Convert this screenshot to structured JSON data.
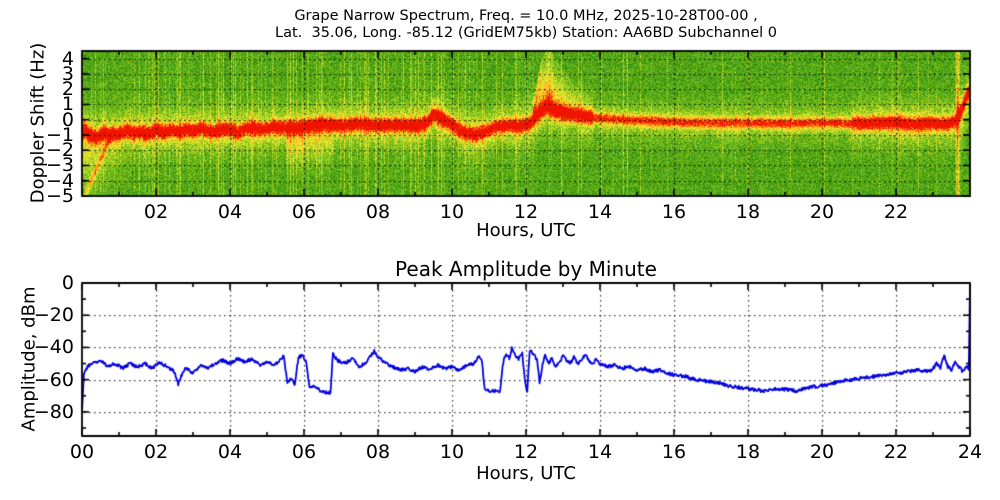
{
  "figure": {
    "background": "#ffffff"
  },
  "top_chart": {
    "title_line1": "Grape Narrow Spectrum, Freq. = 10.0 MHz, 2025-10-28T00-00 ,",
    "title_line2": "Lat.  35.06, Long. -85.12 (GridEM75kb) Station: AA6BD Subchannel 0",
    "xlabel": "Hours, UTC",
    "ylabel": "Doppler Shift (Hz)"
  },
  "bottom_chart": {
    "title": "Peak Amplitude by Minute",
    "xlabel": "Hours, UTC",
    "ylabel": "Amplitude, dBm"
  },
  "chart_data": [
    {
      "type": "heatmap",
      "title": "Grape Narrow Spectrum, Freq. = 10.0 MHz, 2025-10-28T00-00 , Lat. 35.06, Long. -85.12 (GridEM75kb) Station: AA6BD Subchannel 0",
      "xlabel": "Hours, UTC",
      "ylabel": "Doppler Shift (Hz)",
      "xlim": [
        0,
        24
      ],
      "ylim": [
        -5,
        4.5
      ],
      "grid": "dotted",
      "x_tick_values": [
        2,
        4,
        6,
        8,
        10,
        12,
        14,
        16,
        18,
        20,
        22
      ],
      "x_tick_labels": [
        "02",
        "04",
        "06",
        "08",
        "10",
        "12",
        "14",
        "16",
        "18",
        "20",
        "22"
      ],
      "y_tick_values": [
        4,
        3,
        2,
        1,
        0,
        -1,
        -2,
        -3,
        -4,
        -5
      ],
      "y_tick_labels": [
        "4",
        "3",
        "2",
        "1",
        "0",
        "−1",
        "−2",
        "−3",
        "−4",
        "−5"
      ],
      "colormap": [
        "#1e760e",
        "#3a9614",
        "#69b61a",
        "#a0d022",
        "#e1e830",
        "#ffe132",
        "#ffa019",
        "#ff5a0a",
        "#f01400"
      ],
      "doppler_trace_hz": [
        [
          0.0,
          -0.6
        ],
        [
          0.2,
          -1.0
        ],
        [
          0.4,
          -1.15
        ],
        [
          0.6,
          -0.85
        ],
        [
          0.8,
          -1.0
        ],
        [
          1.0,
          -0.95
        ],
        [
          1.2,
          -0.7
        ],
        [
          1.4,
          -0.9
        ],
        [
          1.6,
          -0.8
        ],
        [
          1.8,
          -0.95
        ],
        [
          2.0,
          -0.65
        ],
        [
          2.2,
          -0.85
        ],
        [
          2.4,
          -0.7
        ],
        [
          2.6,
          -0.8
        ],
        [
          2.8,
          -0.65
        ],
        [
          3.0,
          -0.75
        ],
        [
          3.2,
          -0.55
        ],
        [
          3.4,
          -0.75
        ],
        [
          3.6,
          -0.8
        ],
        [
          3.8,
          -0.6
        ],
        [
          4.0,
          -0.65
        ],
        [
          4.2,
          -0.85
        ],
        [
          4.4,
          -0.6
        ],
        [
          4.6,
          -0.5
        ],
        [
          4.8,
          -0.65
        ],
        [
          5.0,
          -0.6
        ],
        [
          5.2,
          -0.45
        ],
        [
          5.4,
          -0.55
        ],
        [
          5.6,
          -0.5
        ],
        [
          5.8,
          -0.55
        ],
        [
          6.0,
          -0.45
        ],
        [
          6.2,
          -0.4
        ],
        [
          6.5,
          -0.3
        ],
        [
          7.0,
          -0.4
        ],
        [
          7.5,
          -0.3
        ],
        [
          8.0,
          -0.4
        ],
        [
          8.5,
          -0.35
        ],
        [
          9.0,
          -0.4
        ],
        [
          9.3,
          -0.25
        ],
        [
          9.5,
          0.35
        ],
        [
          9.7,
          0.1
        ],
        [
          10.0,
          -0.35
        ],
        [
          10.3,
          -0.85
        ],
        [
          10.6,
          -1.0
        ],
        [
          10.9,
          -0.75
        ],
        [
          11.2,
          -0.45
        ],
        [
          11.5,
          -0.35
        ],
        [
          11.8,
          -0.45
        ],
        [
          12.1,
          -0.25
        ],
        [
          12.35,
          0.35
        ],
        [
          12.55,
          0.75
        ],
        [
          12.75,
          0.55
        ],
        [
          13.0,
          0.4
        ],
        [
          13.3,
          0.3
        ],
        [
          13.6,
          0.2
        ],
        [
          14.0,
          0.1
        ],
        [
          14.5,
          0.0
        ],
        [
          15.0,
          -0.05
        ],
        [
          16.0,
          -0.15
        ],
        [
          17.0,
          -0.2
        ],
        [
          18.0,
          -0.2
        ],
        [
          19.0,
          -0.25
        ],
        [
          20.0,
          -0.2
        ],
        [
          21.0,
          -0.25
        ],
        [
          22.0,
          -0.2
        ],
        [
          22.5,
          -0.3
        ],
        [
          23.0,
          -0.25
        ],
        [
          23.4,
          -0.3
        ],
        [
          23.6,
          -0.1
        ],
        [
          23.75,
          0.6
        ],
        [
          23.9,
          1.6
        ],
        [
          24.0,
          2.1
        ]
      ],
      "plume_envelope_hz": [
        [
          12.15,
          0.3
        ],
        [
          12.3,
          2.4
        ],
        [
          12.45,
          3.7
        ],
        [
          12.6,
          4.3
        ],
        [
          12.75,
          3.6
        ],
        [
          12.95,
          2.9
        ],
        [
          13.15,
          2.3
        ],
        [
          13.4,
          1.6
        ],
        [
          13.75,
          0.8
        ]
      ],
      "plume_density": [
        [
          12.15,
          0.4
        ],
        [
          12.35,
          0.7
        ],
        [
          12.55,
          0.8
        ],
        [
          12.7,
          0.65
        ],
        [
          12.9,
          0.5
        ],
        [
          13.1,
          0.4
        ],
        [
          13.45,
          0.25
        ],
        [
          13.75,
          0.1
        ]
      ],
      "events": [
        {
          "time_utc": 0.3,
          "desc": "descending doppler streak to -4.5 Hz near 00 UTC"
        },
        {
          "time_utc": 12.5,
          "desc": "upward doppler plume reaching +4 Hz around 12.5 UTC"
        },
        {
          "time_utc": 23.65,
          "desc": "broadband vertical streak near 23.7 UTC, trace rises to +2 Hz"
        }
      ]
    },
    {
      "type": "line",
      "title": "Peak Amplitude by Minute",
      "xlabel": "Hours, UTC",
      "ylabel": "Amplitude, dBm",
      "xlim": [
        0,
        24
      ],
      "ylim": [
        -95,
        0
      ],
      "grid": "dotted",
      "line_color": "#0000dd",
      "x_tick_values": [
        0,
        2,
        4,
        6,
        8,
        10,
        12,
        14,
        16,
        18,
        20,
        22,
        24
      ],
      "x_tick_labels": [
        "00",
        "02",
        "04",
        "06",
        "08",
        "10",
        "12",
        "14",
        "16",
        "18",
        "20",
        "22",
        "24"
      ],
      "y_tick_values": [
        0,
        -20,
        -40,
        -60,
        -80
      ],
      "y_tick_labels": [
        "0",
        "−20",
        "−40",
        "−60",
        "−80"
      ],
      "series": [
        {
          "name": "Peak Amplitude (dBm)",
          "points": [
            [
              0.0,
              -80
            ],
            [
              0.05,
              -57
            ],
            [
              0.15,
              -52
            ],
            [
              0.3,
              -50
            ],
            [
              0.5,
              -48
            ],
            [
              0.7,
              -52
            ],
            [
              0.9,
              -50
            ],
            [
              1.1,
              -53
            ],
            [
              1.3,
              -50
            ],
            [
              1.5,
              -52
            ],
            [
              1.7,
              -50
            ],
            [
              1.9,
              -53
            ],
            [
              2.1,
              -49
            ],
            [
              2.3,
              -52
            ],
            [
              2.5,
              -55
            ],
            [
              2.6,
              -63
            ],
            [
              2.7,
              -57
            ],
            [
              2.8,
              -53
            ],
            [
              3.0,
              -56
            ],
            [
              3.2,
              -51
            ],
            [
              3.4,
              -53
            ],
            [
              3.6,
              -50
            ],
            [
              3.8,
              -48
            ],
            [
              4.0,
              -50
            ],
            [
              4.2,
              -47
            ],
            [
              4.4,
              -49
            ],
            [
              4.6,
              -47
            ],
            [
              4.8,
              -51
            ],
            [
              5.0,
              -49
            ],
            [
              5.2,
              -51
            ],
            [
              5.35,
              -48
            ],
            [
              5.45,
              -45
            ],
            [
              5.55,
              -62
            ],
            [
              5.65,
              -59
            ],
            [
              5.75,
              -63
            ],
            [
              5.85,
              -46
            ],
            [
              5.95,
              -45
            ],
            [
              6.05,
              -48
            ],
            [
              6.15,
              -65
            ],
            [
              6.3,
              -64
            ],
            [
              6.45,
              -67
            ],
            [
              6.6,
              -68
            ],
            [
              6.72,
              -68
            ],
            [
              6.78,
              -44
            ],
            [
              6.9,
              -48
            ],
            [
              7.1,
              -50
            ],
            [
              7.3,
              -47
            ],
            [
              7.5,
              -52
            ],
            [
              7.7,
              -49
            ],
            [
              7.9,
              -42
            ],
            [
              8.0,
              -46
            ],
            [
              8.2,
              -50
            ],
            [
              8.4,
              -52
            ],
            [
              8.6,
              -54
            ],
            [
              8.8,
              -53
            ],
            [
              9.0,
              -55
            ],
            [
              9.2,
              -52
            ],
            [
              9.4,
              -54
            ],
            [
              9.6,
              -51
            ],
            [
              9.8,
              -53
            ],
            [
              10.0,
              -52
            ],
            [
              10.2,
              -54
            ],
            [
              10.4,
              -51
            ],
            [
              10.6,
              -50
            ],
            [
              10.7,
              -46
            ],
            [
              10.8,
              -47
            ],
            [
              10.88,
              -65
            ],
            [
              11.0,
              -67
            ],
            [
              11.15,
              -67
            ],
            [
              11.3,
              -67
            ],
            [
              11.38,
              -50
            ],
            [
              11.45,
              -44
            ],
            [
              11.55,
              -47
            ],
            [
              11.62,
              -40
            ],
            [
              11.7,
              -45
            ],
            [
              11.8,
              -47
            ],
            [
              11.9,
              -44
            ],
            [
              11.97,
              -60
            ],
            [
              12.03,
              -68
            ],
            [
              12.1,
              -42
            ],
            [
              12.2,
              -44
            ],
            [
              12.3,
              -48
            ],
            [
              12.37,
              -62
            ],
            [
              12.45,
              -50
            ],
            [
              12.52,
              -45
            ],
            [
              12.6,
              -50
            ],
            [
              12.7,
              -47
            ],
            [
              12.8,
              -52
            ],
            [
              12.9,
              -50
            ],
            [
              13.0,
              -45
            ],
            [
              13.1,
              -48
            ],
            [
              13.2,
              -50
            ],
            [
              13.3,
              -46
            ],
            [
              13.4,
              -50
            ],
            [
              13.5,
              -48
            ],
            [
              13.6,
              -44
            ],
            [
              13.7,
              -48
            ],
            [
              13.8,
              -50
            ],
            [
              13.9,
              -47
            ],
            [
              14.0,
              -50
            ],
            [
              14.2,
              -52
            ],
            [
              14.4,
              -51
            ],
            [
              14.6,
              -53
            ],
            [
              14.8,
              -52
            ],
            [
              15.0,
              -54
            ],
            [
              15.2,
              -53
            ],
            [
              15.4,
              -55
            ],
            [
              15.6,
              -54
            ],
            [
              15.8,
              -56
            ],
            [
              16.0,
              -57
            ],
            [
              16.3,
              -58
            ],
            [
              16.6,
              -60
            ],
            [
              16.9,
              -61
            ],
            [
              17.2,
              -62
            ],
            [
              17.5,
              -64
            ],
            [
              17.8,
              -65
            ],
            [
              18.1,
              -66
            ],
            [
              18.4,
              -67
            ],
            [
              18.7,
              -66
            ],
            [
              19.0,
              -66
            ],
            [
              19.3,
              -67
            ],
            [
              19.6,
              -65
            ],
            [
              19.9,
              -64
            ],
            [
              20.2,
              -63
            ],
            [
              20.5,
              -61
            ],
            [
              20.8,
              -60
            ],
            [
              21.1,
              -59
            ],
            [
              21.4,
              -58
            ],
            [
              21.7,
              -57
            ],
            [
              22.0,
              -56
            ],
            [
              22.3,
              -55
            ],
            [
              22.6,
              -54
            ],
            [
              22.9,
              -55
            ],
            [
              23.0,
              -53
            ],
            [
              23.1,
              -50
            ],
            [
              23.2,
              -53
            ],
            [
              23.3,
              -45
            ],
            [
              23.4,
              -52
            ],
            [
              23.5,
              -54
            ],
            [
              23.6,
              -49
            ],
            [
              23.7,
              -52
            ],
            [
              23.8,
              -55
            ],
            [
              23.9,
              -52
            ],
            [
              23.97,
              -54
            ],
            [
              24.0,
              0
            ]
          ]
        }
      ]
    }
  ]
}
